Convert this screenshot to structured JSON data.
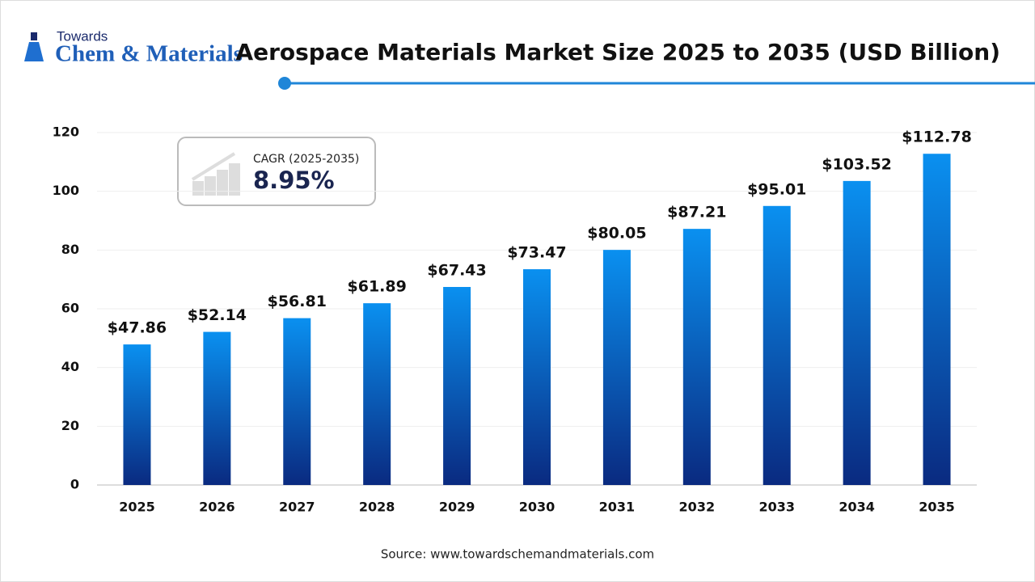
{
  "brand": {
    "top": "Towards",
    "name": "Chem & Materials"
  },
  "cagr": {
    "label": "CAGR (2025-2035)",
    "value": "8.95%"
  },
  "source": "Source: www.towardschemandmaterials.com",
  "chart_data": {
    "type": "bar",
    "title": "Aerospace Materials Market Size 2025 to 2035 (USD Billion)",
    "categories": [
      "2025",
      "2026",
      "2027",
      "2028",
      "2029",
      "2030",
      "2031",
      "2032",
      "2033",
      "2034",
      "2035"
    ],
    "values": [
      47.86,
      52.14,
      56.81,
      61.89,
      67.43,
      73.47,
      80.05,
      87.21,
      95.01,
      103.52,
      112.78
    ],
    "value_labels": [
      "$47.86",
      "$52.14",
      "$56.81",
      "$61.89",
      "$67.43",
      "$73.47",
      "$80.05",
      "$87.21",
      "$95.01",
      "$103.52",
      "$112.78"
    ],
    "color": "#0a90f0",
    "ylim": [
      0,
      120
    ],
    "yticks": [
      0,
      20,
      40,
      60,
      80,
      100,
      120
    ],
    "grid": true
  }
}
